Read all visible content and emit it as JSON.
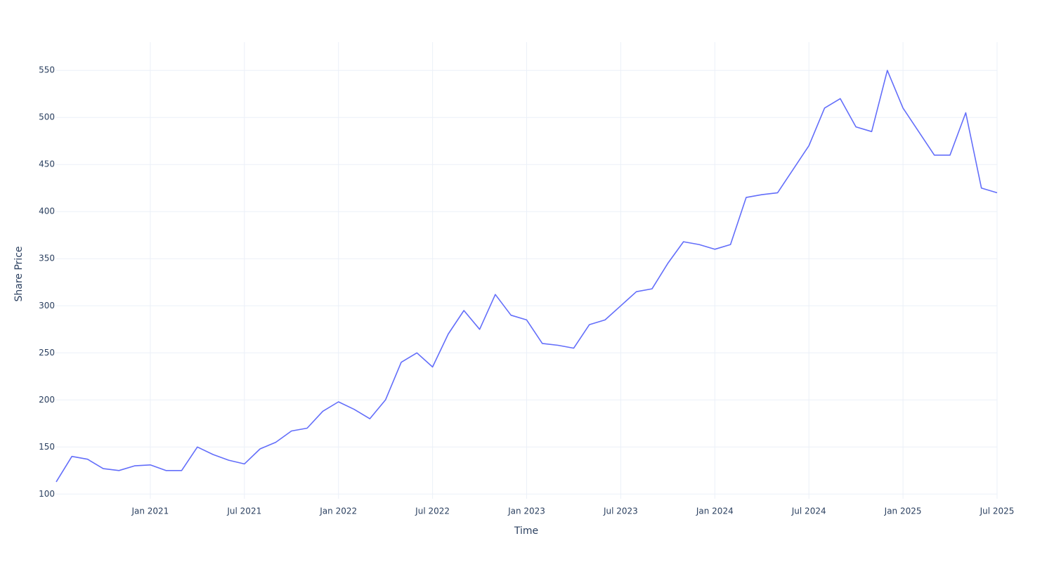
{
  "chart_data": {
    "type": "line",
    "x_label": "Time",
    "y_label": "Share Price",
    "x": [
      "2020-07",
      "2020-08",
      "2020-09",
      "2020-10",
      "2020-11",
      "2020-12",
      "2021-01",
      "2021-02",
      "2021-03",
      "2021-04",
      "2021-05",
      "2021-06",
      "2021-07",
      "2021-08",
      "2021-09",
      "2021-10",
      "2021-11",
      "2021-12",
      "2022-01",
      "2022-02",
      "2022-03",
      "2022-04",
      "2022-05",
      "2022-06",
      "2022-07",
      "2022-08",
      "2022-09",
      "2022-10",
      "2022-11",
      "2022-12",
      "2023-01",
      "2023-02",
      "2023-03",
      "2023-04",
      "2023-05",
      "2023-06",
      "2023-07",
      "2023-08",
      "2023-09",
      "2023-10",
      "2023-11",
      "2023-12",
      "2024-01",
      "2024-02",
      "2024-03",
      "2024-04",
      "2024-05",
      "2024-06",
      "2024-07",
      "2024-08",
      "2024-09",
      "2024-10",
      "2024-11",
      "2024-12",
      "2025-01",
      "2025-02",
      "2025-03",
      "2025-04",
      "2025-05",
      "2025-06",
      "2025-07"
    ],
    "values": [
      113,
      140,
      137,
      127,
      125,
      130,
      131,
      125,
      125,
      150,
      142,
      136,
      132,
      148,
      155,
      167,
      170,
      188,
      198,
      190,
      180,
      200,
      240,
      250,
      235,
      270,
      295,
      275,
      312,
      290,
      285,
      260,
      258,
      255,
      280,
      285,
      300,
      315,
      318,
      345,
      368,
      365,
      360,
      365,
      415,
      418,
      420,
      445,
      470,
      510,
      520,
      490,
      485,
      550,
      510,
      485,
      460,
      460,
      505,
      425,
      420
    ],
    "color": "#636efa",
    "xlim": [
      "2020-07",
      "2025-07"
    ],
    "xticks": [
      {
        "value": "2021-01",
        "label": "Jan 2021"
      },
      {
        "value": "2021-07",
        "label": "Jul 2021"
      },
      {
        "value": "2022-01",
        "label": "Jan 2022"
      },
      {
        "value": "2022-07",
        "label": "Jul 2022"
      },
      {
        "value": "2023-01",
        "label": "Jan 2023"
      },
      {
        "value": "2023-07",
        "label": "Jul 2023"
      },
      {
        "value": "2024-01",
        "label": "Jan 2024"
      },
      {
        "value": "2024-07",
        "label": "Jul 2024"
      },
      {
        "value": "2025-01",
        "label": "Jan 2025"
      },
      {
        "value": "2025-07",
        "label": "Jul 2025"
      }
    ],
    "ylim": [
      95,
      580
    ],
    "yticks": [
      100,
      150,
      200,
      250,
      300,
      350,
      400,
      450,
      500,
      550
    ],
    "grid": true
  }
}
